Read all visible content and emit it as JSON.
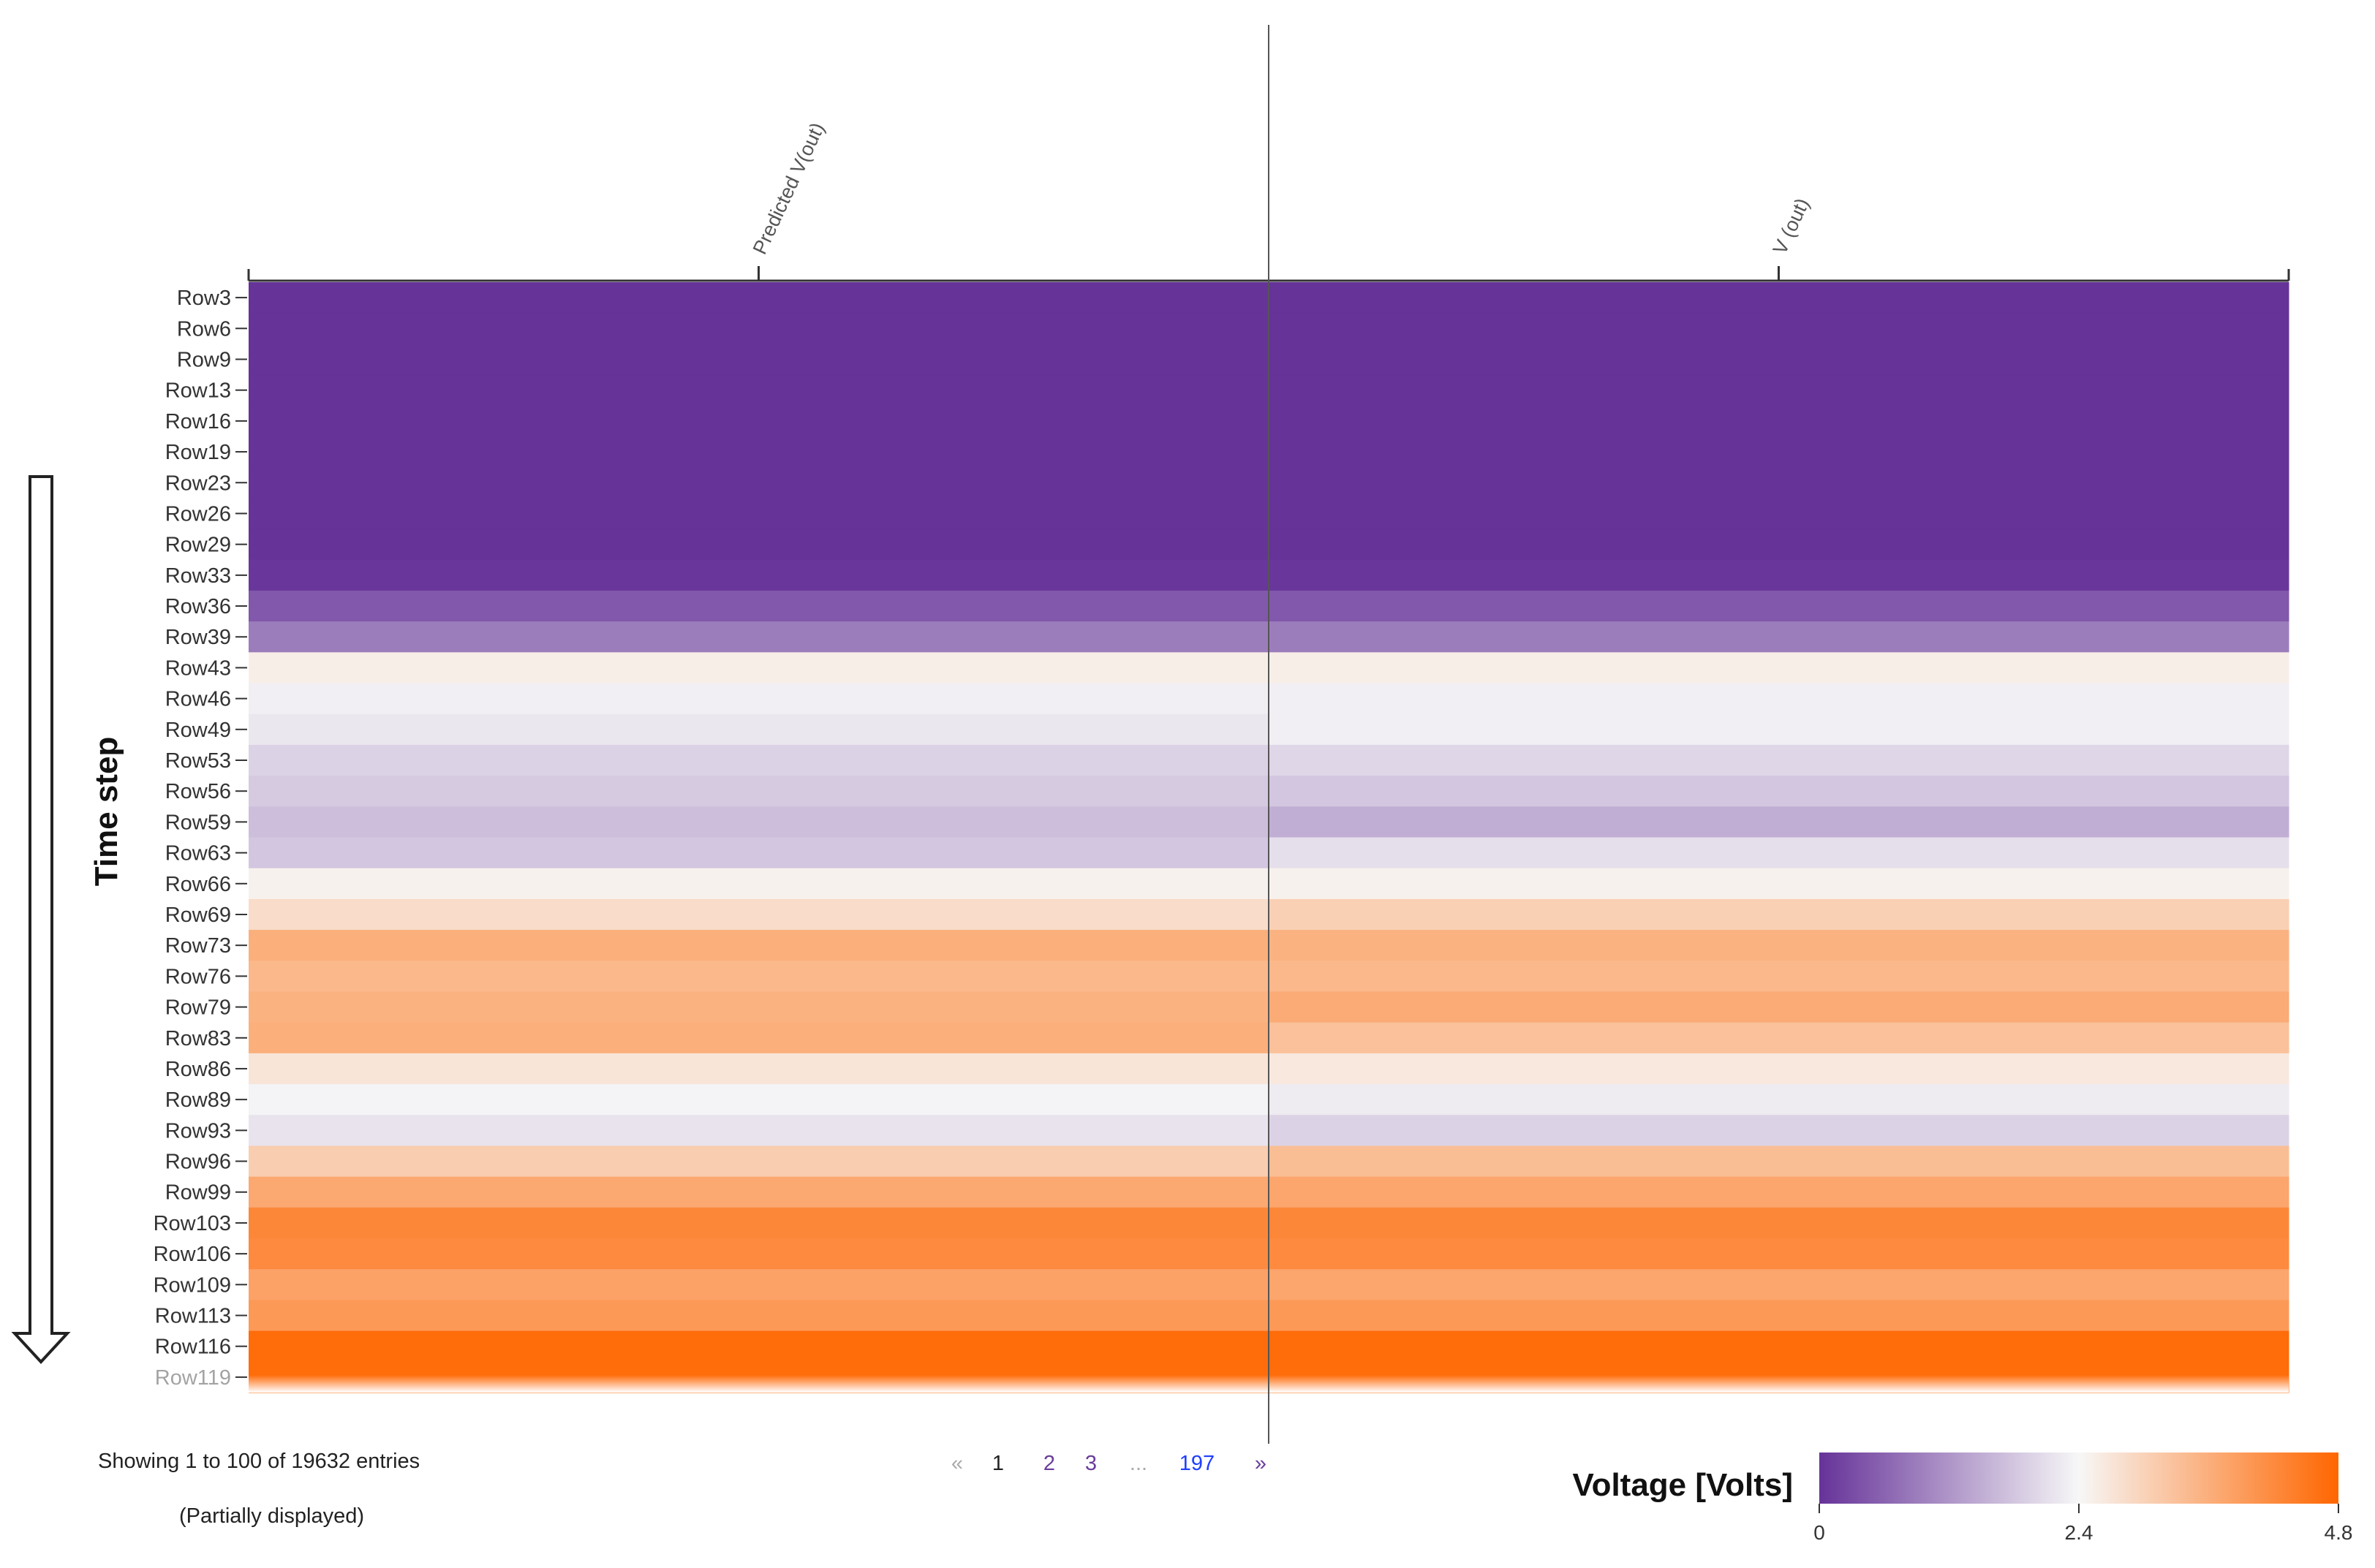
{
  "chart_data": {
    "type": "heatmap",
    "columns": [
      "Predicted V(out)",
      "V (out)"
    ],
    "rows": [
      "Row3",
      "Row6",
      "Row9",
      "Row13",
      "Row16",
      "Row19",
      "Row23",
      "Row26",
      "Row29",
      "Row33",
      "Row36",
      "Row39",
      "Row43",
      "Row46",
      "Row49",
      "Row53",
      "Row56",
      "Row59",
      "Row63",
      "Row66",
      "Row69",
      "Row73",
      "Row76",
      "Row79",
      "Row83",
      "Row86",
      "Row89",
      "Row93",
      "Row96",
      "Row99",
      "Row103",
      "Row106",
      "Row109",
      "Row113",
      "Row116",
      "Row119"
    ],
    "values": [
      [
        0.0,
        0.0
      ],
      [
        0.0,
        0.0
      ],
      [
        0.0,
        0.0
      ],
      [
        0.0,
        0.0
      ],
      [
        0.0,
        0.0
      ],
      [
        0.0,
        0.0
      ],
      [
        0.0,
        0.0
      ],
      [
        0.0,
        0.0
      ],
      [
        0.0,
        0.0
      ],
      [
        0.05,
        0.05
      ],
      [
        0.45,
        0.45
      ],
      [
        0.9,
        0.9
      ],
      [
        2.55,
        2.55
      ],
      [
        2.3,
        2.3
      ],
      [
        2.2,
        2.3
      ],
      [
        1.95,
        2.0
      ],
      [
        1.85,
        1.8
      ],
      [
        1.7,
        1.5
      ],
      [
        1.8,
        2.1
      ],
      [
        2.5,
        2.5
      ],
      [
        2.85,
        3.05
      ],
      [
        3.6,
        3.55
      ],
      [
        3.45,
        3.45
      ],
      [
        3.55,
        3.65
      ],
      [
        3.6,
        3.3
      ],
      [
        2.7,
        2.65
      ],
      [
        2.35,
        2.25
      ],
      [
        2.15,
        1.95
      ],
      [
        3.1,
        3.35
      ],
      [
        3.7,
        3.75
      ],
      [
        4.25,
        4.25
      ],
      [
        4.2,
        4.2
      ],
      [
        3.8,
        3.75
      ],
      [
        3.95,
        3.95
      ],
      [
        4.7,
        4.7
      ],
      [
        4.7,
        4.7
      ]
    ],
    "colorscale": {
      "min": 0,
      "mid": 2.4,
      "max": 4.8,
      "colors": [
        "#663399",
        "#f7f7f7",
        "#ff6600"
      ],
      "ticks": [
        "0",
        "2.4",
        "4.8"
      ],
      "title": "Voltage [Volts]"
    },
    "ylabel": "Time step"
  },
  "pagination": {
    "info": "Showing 1 to 100 of 19632 entries",
    "note": "(Partially displayed)",
    "prev": "«",
    "pages": [
      "1",
      "2",
      "3"
    ],
    "ellipsis": "...",
    "last": "197",
    "next": "»"
  }
}
